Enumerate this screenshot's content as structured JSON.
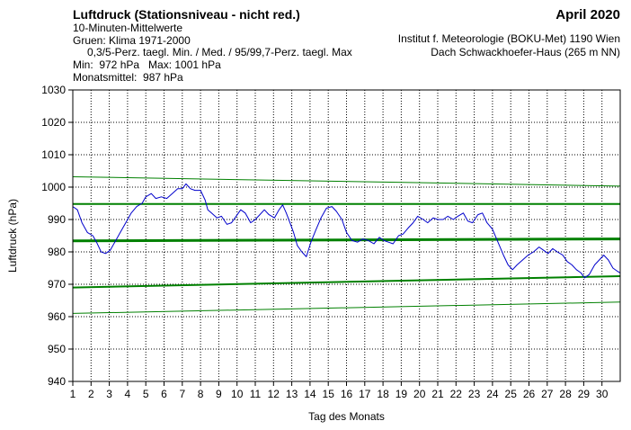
{
  "header": {
    "title": "Luftdruck (Stationsniveau - nicht red.)",
    "subtitle": "10-Minuten-Mittelwerte",
    "climate_line": "Gruen: Klima 1971-2000",
    "percentile_line": "0,3/5-Perz. taegl. Min. / Med. / 95/99,7-Perz. taegl. Max",
    "minmax_line": "Min:  972 hPa   Max: 1001 hPa",
    "mean_line": "Monatsmittel:  987 hPa",
    "month": "April 2020",
    "institute": "Institut f. Meteorologie (BOKU-Met) 1190 Wien",
    "location": "Dach Schwackhoefer-Haus (265 m NN)"
  },
  "chart_data": {
    "type": "line",
    "xlabel": "Tag des Monats",
    "ylabel": "Luftdruck (hPa)",
    "xlim": [
      1,
      31
    ],
    "ylim": [
      940,
      1030
    ],
    "x_ticks": [
      1,
      2,
      3,
      4,
      5,
      6,
      7,
      8,
      9,
      10,
      11,
      12,
      13,
      14,
      15,
      16,
      17,
      18,
      19,
      20,
      21,
      22,
      23,
      24,
      25,
      26,
      27,
      28,
      29,
      30
    ],
    "y_ticks": [
      940,
      950,
      960,
      970,
      980,
      990,
      1000,
      1010,
      1020,
      1030
    ],
    "grid": true,
    "colors": {
      "measured": "#0000cc",
      "climate": "#008000",
      "axes": "#000000",
      "grid": "#000000"
    },
    "series": [
      {
        "values": [
          [
            1,
            994
          ],
          [
            1.25,
            993
          ],
          [
            1.5,
            989
          ],
          [
            1.8,
            986
          ],
          [
            2.1,
            985
          ],
          [
            2.3,
            983
          ],
          [
            2.55,
            980
          ],
          [
            2.8,
            979.5
          ],
          [
            3.05,
            980.5
          ],
          [
            3.3,
            983
          ],
          [
            3.6,
            986
          ],
          [
            3.9,
            989
          ],
          [
            4.2,
            992
          ],
          [
            4.5,
            994
          ],
          [
            4.8,
            995
          ],
          [
            5.0,
            997
          ],
          [
            5.3,
            998
          ],
          [
            5.55,
            996.5
          ],
          [
            5.85,
            997
          ],
          [
            6.15,
            996.5
          ],
          [
            6.45,
            998
          ],
          [
            6.75,
            999.5
          ],
          [
            7.0,
            999.5
          ],
          [
            7.2,
            1001
          ],
          [
            7.45,
            999.5
          ],
          [
            7.7,
            999
          ],
          [
            8.0,
            999
          ],
          [
            8.25,
            996
          ],
          [
            8.4,
            993
          ],
          [
            8.6,
            992
          ],
          [
            8.9,
            990.5
          ],
          [
            9.15,
            991
          ],
          [
            9.45,
            988.5
          ],
          [
            9.7,
            989
          ],
          [
            9.95,
            991
          ],
          [
            10.2,
            993
          ],
          [
            10.45,
            992
          ],
          [
            10.75,
            989
          ],
          [
            11.0,
            990
          ],
          [
            11.25,
            991.5
          ],
          [
            11.5,
            993
          ],
          [
            11.75,
            991.5
          ],
          [
            12.05,
            990.5
          ],
          [
            12.3,
            993
          ],
          [
            12.5,
            994.5
          ],
          [
            12.7,
            992
          ],
          [
            12.9,
            989
          ],
          [
            13.1,
            986
          ],
          [
            13.3,
            982
          ],
          [
            13.55,
            980
          ],
          [
            13.8,
            978.5
          ],
          [
            14.05,
            983
          ],
          [
            14.3,
            986.5
          ],
          [
            14.6,
            990.5
          ],
          [
            14.9,
            993.5
          ],
          [
            15.2,
            994
          ],
          [
            15.45,
            992.5
          ],
          [
            15.75,
            990
          ],
          [
            16.0,
            986
          ],
          [
            16.3,
            983.5
          ],
          [
            16.6,
            983
          ],
          [
            16.9,
            984
          ],
          [
            17.2,
            983.5
          ],
          [
            17.5,
            982.5
          ],
          [
            17.8,
            984.5
          ],
          [
            18.05,
            983.5
          ],
          [
            18.3,
            983
          ],
          [
            18.55,
            982.5
          ],
          [
            18.85,
            985
          ],
          [
            19.1,
            985.5
          ],
          [
            19.4,
            987.5
          ],
          [
            19.65,
            989
          ],
          [
            19.9,
            991
          ],
          [
            20.2,
            990
          ],
          [
            20.45,
            989
          ],
          [
            20.75,
            990.5
          ],
          [
            21.0,
            990
          ],
          [
            21.3,
            990
          ],
          [
            21.55,
            991
          ],
          [
            21.85,
            990
          ],
          [
            22.1,
            991
          ],
          [
            22.4,
            992
          ],
          [
            22.65,
            989.5
          ],
          [
            22.9,
            989
          ],
          [
            23.2,
            991.5
          ],
          [
            23.45,
            992
          ],
          [
            23.7,
            989
          ],
          [
            24.0,
            987
          ],
          [
            24.3,
            983
          ],
          [
            24.6,
            979
          ],
          [
            24.85,
            976
          ],
          [
            25.1,
            974.5
          ],
          [
            25.35,
            976
          ],
          [
            25.65,
            977.5
          ],
          [
            25.95,
            979
          ],
          [
            26.25,
            980
          ],
          [
            26.55,
            981.5
          ],
          [
            26.8,
            980.5
          ],
          [
            27.05,
            979.5
          ],
          [
            27.3,
            981
          ],
          [
            27.55,
            980
          ],
          [
            27.85,
            979
          ],
          [
            28.1,
            977
          ],
          [
            28.35,
            976
          ],
          [
            28.6,
            974.5
          ],
          [
            28.85,
            973.5
          ],
          [
            29.05,
            972
          ],
          [
            29.3,
            973
          ],
          [
            29.6,
            976
          ],
          [
            29.85,
            977.5
          ],
          [
            30.1,
            979
          ],
          [
            30.35,
            977.5
          ],
          [
            30.6,
            975
          ],
          [
            30.85,
            974
          ],
          [
            31,
            973.5
          ]
        ]
      },
      {
        "values": [
          [
            1,
            961
          ],
          [
            31,
            964.5
          ]
        ]
      },
      {
        "values": [
          [
            1,
            969
          ],
          [
            31,
            972.5
          ]
        ]
      },
      {
        "values": [
          [
            1,
            983.4
          ],
          [
            31,
            984
          ]
        ]
      },
      {
        "values": [
          [
            1,
            994.8
          ],
          [
            31,
            994.8
          ]
        ]
      },
      {
        "values": [
          [
            1,
            1003.2
          ],
          [
            31,
            1000.3
          ]
        ]
      }
    ]
  }
}
